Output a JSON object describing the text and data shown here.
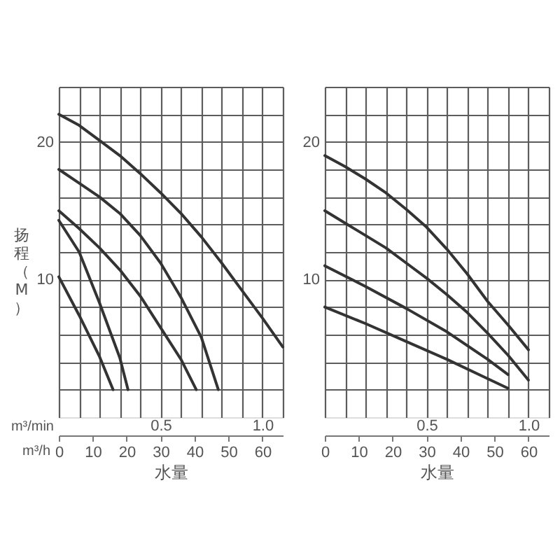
{
  "chart_data": [
    {
      "type": "line",
      "xlabel": "水量",
      "x2label": "m³/min",
      "ylabel": "扬程（M）",
      "annotations": [
        "m³/h"
      ],
      "xlim": [
        0,
        66
      ],
      "xticks": [
        0,
        10,
        20,
        30,
        40,
        50,
        60
      ],
      "x2lim": [
        0,
        1.1
      ],
      "x2ticks": [
        {
          "value": 0,
          "label": null
        },
        {
          "value": 0.1,
          "label": null
        },
        {
          "value": 0.2,
          "label": null
        },
        {
          "value": 0.3,
          "label": null
        },
        {
          "value": 0.4,
          "label": null
        },
        0.5,
        {
          "value": 0.6,
          "label": null
        },
        {
          "value": 0.7,
          "label": null
        },
        {
          "value": 0.8,
          "label": null
        },
        {
          "value": 0.9,
          "label": null
        },
        {
          "value": 1,
          "label": "1.0"
        },
        {
          "value": 1.1,
          "label": null
        }
      ],
      "ylim": [
        0,
        24
      ],
      "yticks": [
        {
          "value": 2,
          "label": null
        },
        {
          "value": 4,
          "label": null
        },
        {
          "value": 6,
          "label": null
        },
        {
          "value": 8,
          "label": null
        },
        10,
        {
          "value": 12,
          "label": null
        },
        {
          "value": 14,
          "label": null
        },
        {
          "value": 16,
          "label": null
        },
        {
          "value": 18,
          "label": null
        },
        20,
        {
          "value": 22,
          "label": null
        },
        {
          "value": 24,
          "label": null
        }
      ],
      "grid": true,
      "legend": false,
      "marker": "none",
      "line_style": "solid",
      "series": [
        {
          "color": "#333333",
          "x": [
            0,
            6,
            12,
            18,
            24,
            30,
            36,
            42,
            48,
            54,
            60,
            66
          ],
          "values": [
            22,
            21.2,
            20.1,
            19.0,
            17.7,
            16.3,
            14.8,
            13.1,
            11.2,
            9.2,
            7.2,
            5.1
          ]
        },
        {
          "color": "#333333",
          "x": [
            0,
            6,
            12,
            18,
            24,
            30,
            36,
            42,
            47
          ],
          "values": [
            18,
            17.0,
            16.0,
            14.8,
            13.2,
            11.2,
            8.7,
            5.8,
            2
          ]
        },
        {
          "color": "#333333",
          "x": [
            0,
            6,
            12,
            18,
            24,
            30,
            36,
            40.5
          ],
          "values": [
            15,
            13.7,
            12.3,
            10.7,
            8.8,
            6.5,
            4.2,
            2
          ]
        },
        {
          "color": "#333333",
          "x": [
            0,
            6,
            12,
            18,
            20.4
          ],
          "values": [
            14.3,
            12.0,
            8.3,
            4.3,
            2
          ]
        },
        {
          "color": "#333333",
          "x": [
            0,
            6,
            12,
            16
          ],
          "values": [
            10.2,
            7.4,
            4.4,
            2
          ]
        }
      ]
    },
    {
      "type": "line",
      "xlabel": "水量",
      "xlim": [
        0,
        66
      ],
      "xticks": [
        0,
        10,
        20,
        30,
        40,
        50,
        60
      ],
      "x2lim": [
        0,
        1.1
      ],
      "x2ticks": [
        {
          "value": 0,
          "label": null
        },
        {
          "value": 0.1,
          "label": null
        },
        {
          "value": 0.2,
          "label": null
        },
        {
          "value": 0.3,
          "label": null
        },
        {
          "value": 0.4,
          "label": null
        },
        0.5,
        {
          "value": 0.6,
          "label": null
        },
        {
          "value": 0.7,
          "label": null
        },
        {
          "value": 0.8,
          "label": null
        },
        {
          "value": 0.9,
          "label": null
        },
        {
          "value": 1,
          "label": "1.0"
        },
        {
          "value": 1.1,
          "label": null
        }
      ],
      "ylim": [
        0,
        24
      ],
      "yticks": [
        {
          "value": 2,
          "label": null
        },
        {
          "value": 4,
          "label": null
        },
        {
          "value": 6,
          "label": null
        },
        {
          "value": 8,
          "label": null
        },
        10,
        {
          "value": 12,
          "label": null
        },
        {
          "value": 14,
          "label": null
        },
        {
          "value": 16,
          "label": null
        },
        {
          "value": 18,
          "label": null
        },
        20,
        {
          "value": 22,
          "label": null
        },
        {
          "value": 24,
          "label": null
        }
      ],
      "grid": true,
      "legend": false,
      "marker": "none",
      "line_style": "solid",
      "series": [
        {
          "color": "#333333",
          "x": [
            0,
            6,
            12,
            18,
            24,
            30,
            36,
            42,
            48,
            54,
            60
          ],
          "values": [
            19,
            18.2,
            17.3,
            16.3,
            15.1,
            13.8,
            12.2,
            10.4,
            8.4,
            6.7,
            4.9
          ]
        },
        {
          "color": "#333333",
          "x": [
            0,
            6,
            12,
            18,
            24,
            30,
            36,
            42,
            48,
            54,
            60
          ],
          "values": [
            15,
            14.1,
            13.2,
            12.3,
            11.2,
            10.1,
            8.9,
            7.6,
            6.1,
            4.5,
            2.7
          ]
        },
        {
          "color": "#333333",
          "x": [
            0,
            12,
            24,
            36,
            48,
            54
          ],
          "values": [
            11,
            9.5,
            7.9,
            6.2,
            4.2,
            3.1
          ]
        },
        {
          "color": "#333333",
          "x": [
            0,
            12,
            24,
            36,
            48,
            54
          ],
          "values": [
            8,
            6.8,
            5.5,
            4.2,
            2.8,
            2.1
          ]
        }
      ]
    }
  ]
}
